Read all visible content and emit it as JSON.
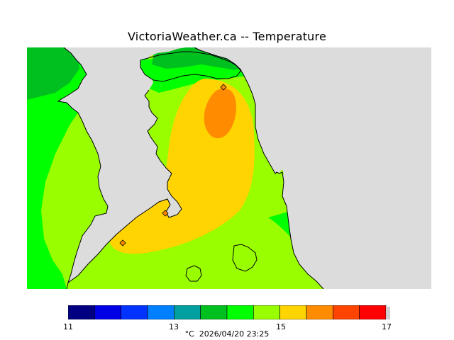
{
  "title": "VictoriaWeather.ca -- Temperature",
  "legend": {
    "min": 11,
    "max": 17,
    "ticks": [
      "11",
      "13",
      "15",
      "17"
    ],
    "unit": "°C",
    "timestamp": "2026/04/20 23:25",
    "bins": [
      {
        "from": 11.0,
        "to": 11.5,
        "color": "#000080"
      },
      {
        "from": 11.5,
        "to": 12.0,
        "color": "#0000e6"
      },
      {
        "from": 12.0,
        "to": 12.5,
        "color": "#0033ff"
      },
      {
        "from": 12.5,
        "to": 13.0,
        "color": "#0080ff"
      },
      {
        "from": 13.0,
        "to": 13.5,
        "color": "#00a0a0"
      },
      {
        "from": 13.5,
        "to": 14.0,
        "color": "#00c020"
      },
      {
        "from": 14.0,
        "to": 14.5,
        "color": "#00ff00"
      },
      {
        "from": 14.5,
        "to": 15.0,
        "color": "#99ff00"
      },
      {
        "from": 15.0,
        "to": 15.5,
        "color": "#ffd400"
      },
      {
        "from": 15.5,
        "to": 16.0,
        "color": "#ff8c00"
      },
      {
        "from": 16.0,
        "to": 16.5,
        "color": "#ff4400"
      },
      {
        "from": 16.5,
        "to": 17.0,
        "color": "#ff0000"
      }
    ]
  },
  "map": {
    "water_color": "#dcdcdc",
    "zone_colors": {
      "t13_5": "#00c020",
      "t14_0": "#00ff00",
      "t14_5": "#99ff00",
      "t15_0": "#ffd400",
      "t15_5": "#ff8c00"
    },
    "station_color": "#ff8c00",
    "station_count": 3
  }
}
